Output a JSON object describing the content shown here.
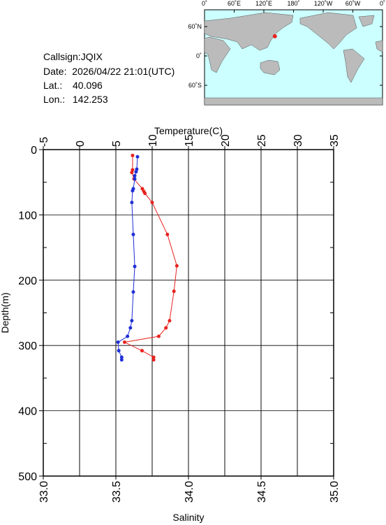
{
  "station": {
    "callsign": "Callsign:JQIX",
    "date": "Date:  2026/04/22 21:01(UTC)",
    "lat_label": "Lat.:",
    "lat": 40.096,
    "lon_label": "Lon.:",
    "lon": 142.253
  },
  "map": {
    "lon_labels": [
      "0˚",
      "60˚E",
      "120˚E",
      "180˚",
      "120˚W",
      "60˚W",
      "0˚"
    ],
    "lat_labels": [
      "60˚N",
      "0˚",
      "60˚S"
    ],
    "marker_color": "#e8221f"
  },
  "chart_data": {
    "type": "profile",
    "temperature_axis": {
      "label": "Temperature(C)",
      "lim": [
        -5,
        35
      ],
      "ticks": [
        -5,
        0,
        5,
        10,
        15,
        20,
        25,
        30,
        35
      ]
    },
    "salinity_axis": {
      "label": "Salinity",
      "lim": [
        33,
        35
      ],
      "ticks": [
        {
          "value": 33,
          "label": "33.0"
        },
        {
          "value": 33.5,
          "label": "33.5"
        },
        {
          "value": 34,
          "label": "34.0"
        },
        {
          "value": 34.5,
          "label": "34.5"
        },
        {
          "value": 35,
          "label": "35.0"
        }
      ],
      "minor": [
        33.25,
        33.75,
        34.25,
        34.75
      ]
    },
    "depth_axis": {
      "label": "Depth(m)",
      "lim": [
        0,
        500
      ],
      "ticks": [
        0,
        100,
        200,
        300,
        400,
        500
      ],
      "minor": [
        50,
        150,
        250,
        350,
        450
      ]
    },
    "grid": true,
    "series": [
      {
        "x_axis": "temperature",
        "color": "#e8221f",
        "x": [
          7.3,
          7.3,
          7.2,
          7.5,
          8.65,
          8.85,
          9.0,
          10.0,
          12.1,
          13.4,
          13.0,
          12.4,
          11.9,
          10.9,
          6.2,
          8.6,
          10.2,
          10.2
        ],
        "depth": [
          9,
          31,
          35,
          45,
          60,
          64,
          67,
          81,
          130,
          178,
          217,
          262,
          273,
          286,
          295,
          308,
          318,
          322
        ]
      },
      {
        "x_axis": "salinity",
        "color": "#1f2fd6",
        "x": [
          33.649,
          33.644,
          33.639,
          33.63,
          33.63,
          33.62,
          33.615,
          33.61,
          33.62,
          33.63,
          33.62,
          33.61,
          33.6,
          33.58,
          33.515,
          33.52,
          33.54,
          33.54
        ],
        "depth": [
          11,
          30,
          34,
          40,
          45,
          60,
          63,
          81,
          130,
          179,
          218,
          262,
          273,
          286,
          295,
          308,
          318,
          322
        ]
      }
    ]
  }
}
